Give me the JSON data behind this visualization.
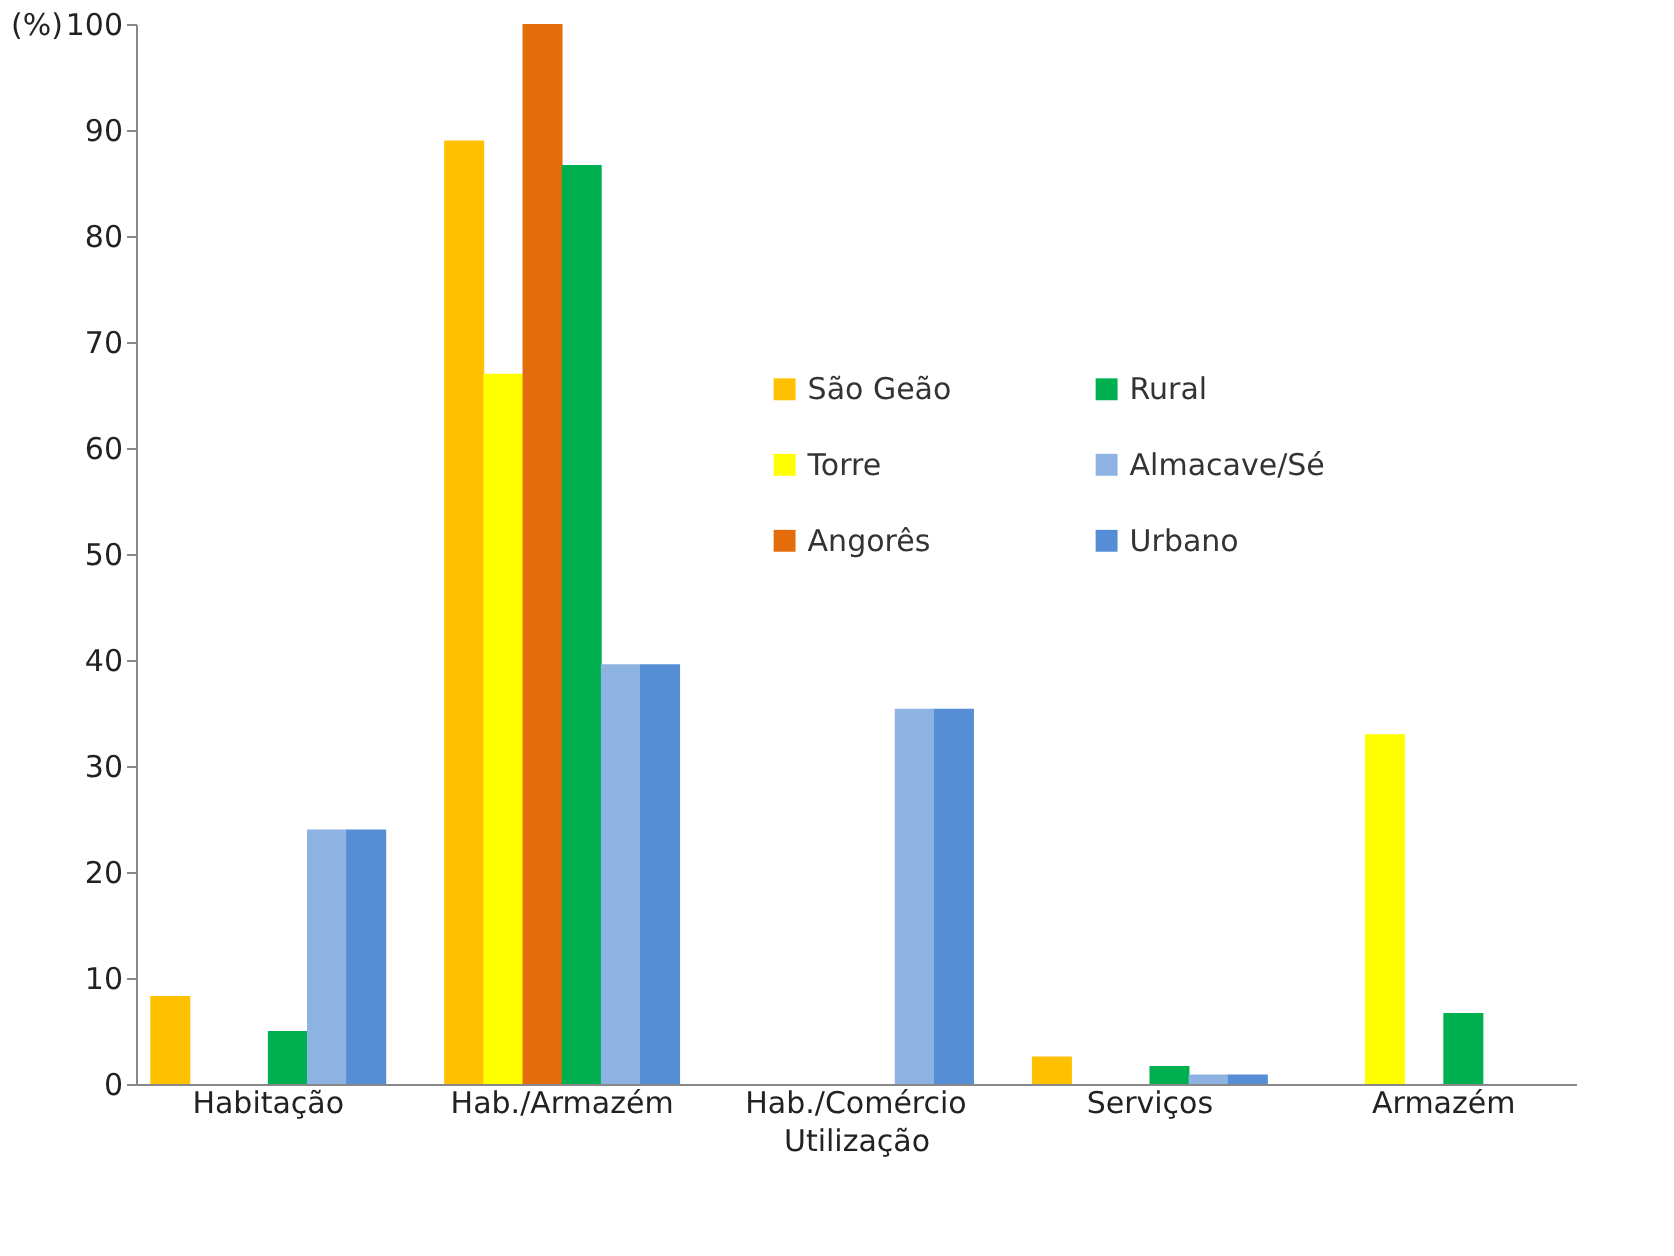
{
  "chart_data": {
    "type": "bar",
    "xlabel": "Utilização",
    "ylabel": "(%)",
    "categories": [
      "Habitação",
      "Hab./Armazém",
      "Hab./Comércio",
      "Serviços",
      "Armazém"
    ],
    "series": [
      {
        "name": "São Geão",
        "color": "#ffc000",
        "values": [
          8.3,
          89,
          null,
          2.6,
          null
        ]
      },
      {
        "name": "Torre",
        "color": "#ffff00",
        "values": [
          null,
          67,
          null,
          null,
          33
        ]
      },
      {
        "name": "Angorês",
        "color": "#e46c0a",
        "values": [
          null,
          100,
          null,
          null,
          null
        ]
      },
      {
        "name": "Rural",
        "color": "#00b050",
        "values": [
          5,
          86.7,
          null,
          1.7,
          6.7
        ]
      },
      {
        "name": "Almacave/Sé",
        "color": "#8db3e2",
        "values": [
          24,
          39.6,
          35.4,
          0.9,
          null
        ]
      },
      {
        "name": "Urbano",
        "color": "#558ed5",
        "values": [
          24,
          39.6,
          35.4,
          0.9,
          null
        ]
      }
    ],
    "ylim": [
      0,
      100
    ],
    "yticks": [
      0,
      10,
      20,
      30,
      40,
      50,
      60,
      70,
      80,
      90,
      100
    ],
    "grid": false,
    "legend": "right"
  }
}
